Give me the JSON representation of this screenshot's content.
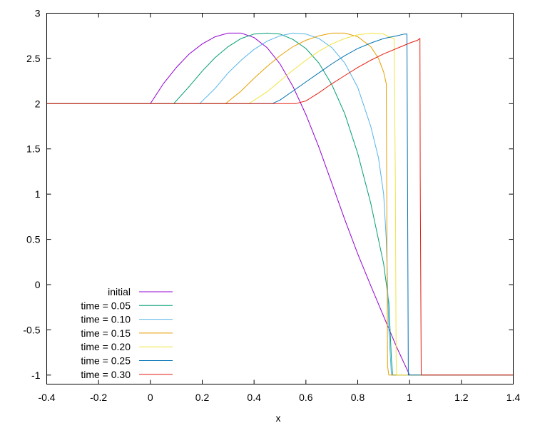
{
  "chart_data": {
    "type": "line",
    "title": "",
    "xlabel": "x",
    "ylabel": "",
    "xlim": [
      -0.4,
      1.4
    ],
    "ylim": [
      -1.1,
      3
    ],
    "x_ticks": [
      -0.4,
      -0.2,
      0,
      0.2,
      0.4,
      0.6,
      0.8,
      1,
      1.2,
      1.4
    ],
    "y_ticks": [
      -1,
      -0.5,
      0,
      0.5,
      1,
      1.5,
      2,
      2.5,
      3
    ],
    "x_tick_labels": [
      "-0.4",
      "-0.2",
      "0",
      "0.2",
      "0.4",
      "0.6",
      "0.8",
      "1",
      "1.2",
      "1.4"
    ],
    "y_tick_labels": [
      "-1",
      "-0.5",
      "0",
      "0.5",
      "1",
      "1.5",
      "2",
      "2.5",
      "3"
    ],
    "grid": false,
    "legend_position": "bottom-left",
    "series": [
      {
        "name": "initial",
        "color": "#9400d3",
        "x": [
          -0.4,
          0,
          0.05,
          0.1,
          0.15,
          0.2,
          0.25,
          0.3,
          0.35,
          0.4,
          0.45,
          0.5,
          0.55,
          0.6,
          0.65,
          0.7,
          0.75,
          0.8,
          0.85,
          0.9,
          0.95,
          1,
          1.0,
          1.4
        ],
        "y": [
          2,
          2,
          2.22,
          2.4,
          2.55,
          2.66,
          2.74,
          2.78,
          2.78,
          2.73,
          2.62,
          2.44,
          2.19,
          1.88,
          1.52,
          1.12,
          0.72,
          0.34,
          -0.01,
          -0.35,
          -0.69,
          -1,
          -1,
          -1
        ]
      },
      {
        "name": "time = 0.05",
        "color": "#009e73",
        "x": [
          -0.4,
          0.09,
          0.15,
          0.2,
          0.25,
          0.3,
          0.35,
          0.4,
          0.45,
          0.5,
          0.55,
          0.6,
          0.65,
          0.7,
          0.75,
          0.8,
          0.85,
          0.9,
          0.92,
          0.93,
          0.935,
          1.4
        ],
        "y": [
          2,
          2,
          2.19,
          2.36,
          2.51,
          2.63,
          2.72,
          2.77,
          2.78,
          2.77,
          2.71,
          2.61,
          2.45,
          2.21,
          1.89,
          1.45,
          0.9,
          0.23,
          -0.2,
          -0.82,
          -1,
          -1
        ]
      },
      {
        "name": "time = 0.10",
        "color": "#56b4e9",
        "x": [
          -0.4,
          0.19,
          0.25,
          0.3,
          0.35,
          0.4,
          0.45,
          0.5,
          0.55,
          0.6,
          0.65,
          0.7,
          0.75,
          0.8,
          0.85,
          0.88,
          0.9,
          0.91,
          0.92,
          0.93,
          1.4
        ],
        "y": [
          2,
          2,
          2.17,
          2.34,
          2.48,
          2.6,
          2.69,
          2.75,
          2.78,
          2.77,
          2.72,
          2.62,
          2.45,
          2.18,
          1.75,
          1.4,
          1.0,
          0.5,
          -0.5,
          -1,
          -1
        ]
      },
      {
        "name": "time = 0.15",
        "color": "#e69f00",
        "x": [
          -0.4,
          0.29,
          0.35,
          0.4,
          0.45,
          0.5,
          0.55,
          0.6,
          0.65,
          0.7,
          0.75,
          0.8,
          0.85,
          0.88,
          0.9,
          0.91,
          0.912,
          0.915,
          0.92,
          1.4
        ],
        "y": [
          2,
          2,
          2.14,
          2.28,
          2.41,
          2.53,
          2.63,
          2.7,
          2.75,
          2.78,
          2.78,
          2.74,
          2.63,
          2.5,
          2.35,
          2.22,
          1.0,
          -0.9,
          -1,
          -1
        ]
      },
      {
        "name": "time = 0.20",
        "color": "#f0e442",
        "x": [
          -0.4,
          0.38,
          0.45,
          0.5,
          0.55,
          0.6,
          0.65,
          0.7,
          0.75,
          0.8,
          0.85,
          0.9,
          0.92,
          0.94,
          0.945,
          0.948,
          0.95,
          1.4
        ],
        "y": [
          2,
          2,
          2.13,
          2.25,
          2.37,
          2.48,
          2.58,
          2.66,
          2.72,
          2.76,
          2.78,
          2.77,
          2.74,
          2.72,
          1.2,
          -0.8,
          -1,
          -1
        ]
      },
      {
        "name": "time = 0.25",
        "color": "#0072b2",
        "x": [
          -0.4,
          0.47,
          0.5,
          0.55,
          0.6,
          0.65,
          0.7,
          0.75,
          0.8,
          0.85,
          0.9,
          0.95,
          0.98,
          0.99,
          0.992,
          0.995,
          1.4
        ],
        "y": [
          2,
          2,
          2.04,
          2.14,
          2.24,
          2.34,
          2.44,
          2.53,
          2.61,
          2.67,
          2.72,
          2.75,
          2.77,
          2.77,
          1.2,
          -1,
          -1
        ]
      },
      {
        "name": "time = 0.30",
        "color": "#e51e10",
        "x": [
          -0.4,
          0.56,
          0.6,
          0.65,
          0.7,
          0.75,
          0.8,
          0.85,
          0.9,
          0.95,
          1.0,
          1.03,
          1.04,
          1.041,
          1.045,
          1.4
        ],
        "y": [
          2,
          2,
          2.03,
          2.12,
          2.22,
          2.31,
          2.4,
          2.48,
          2.55,
          2.61,
          2.67,
          2.7,
          2.72,
          1.2,
          -1,
          -1
        ]
      }
    ]
  }
}
